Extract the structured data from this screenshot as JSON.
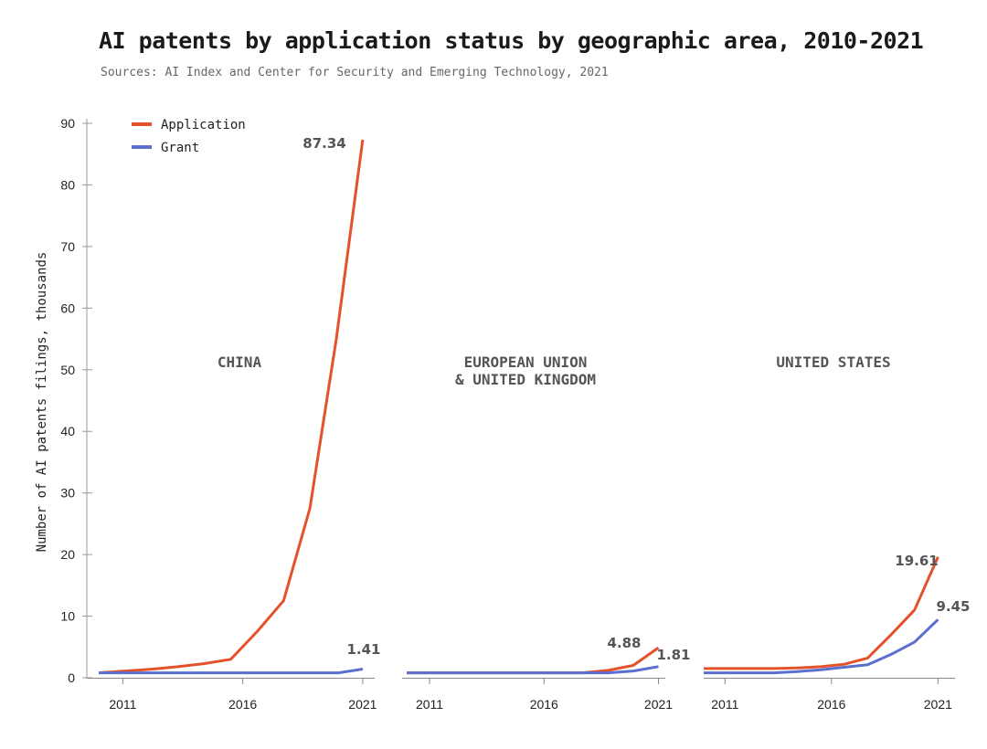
{
  "title": "AI patents by application status by geographic area, 2010-2021",
  "subtitle": "Sources: AI Index and Center for Security and Emerging Technology, 2021",
  "colors": {
    "application": "#e4522b",
    "grant": "#5b6fcf"
  },
  "chart_data": {
    "type": "line",
    "ylabel": "Number of AI patents filings, thousands",
    "ylim": [
      0,
      90
    ],
    "yticks": [
      0,
      10,
      20,
      30,
      40,
      50,
      60,
      70,
      80,
      90
    ],
    "xticks": [
      2011,
      2016,
      2021
    ],
    "legend": {
      "placement": "top-left",
      "entries": [
        "Application",
        "Grant"
      ]
    },
    "panels": [
      {
        "name": "CHINA",
        "x": [
          2010,
          2011,
          2012,
          2013,
          2014,
          2015,
          2016,
          2017,
          2018,
          2019,
          2020,
          2021
        ],
        "series": [
          {
            "name": "Application",
            "values": [
              0.8,
              1.1,
              1.4,
              1.8,
              2.3,
              3.0,
              7.5,
              12.5,
              27.5,
              55.0,
              87.34,
              null
            ]
          },
          {
            "name": "Grant",
            "values": [
              0.8,
              0.8,
              0.8,
              0.8,
              0.8,
              0.8,
              0.8,
              0.8,
              0.8,
              0.8,
              0.8,
              1.41
            ]
          }
        ],
        "data_labels": [
          {
            "series": "Application",
            "text": "87.34"
          },
          {
            "series": "Grant",
            "text": "1.41"
          }
        ]
      },
      {
        "name": "EUROPEAN UNION & UNITED KINGDOM",
        "name_lines": [
          "EUROPEAN UNION",
          "& UNITED KINGDOM"
        ],
        "x": [
          2010,
          2011,
          2012,
          2013,
          2014,
          2015,
          2016,
          2017,
          2018,
          2019,
          2020,
          2021
        ],
        "series": [
          {
            "name": "Application",
            "values": [
              0.8,
              0.8,
              0.8,
              0.8,
              0.8,
              0.8,
              0.8,
              0.8,
              1.2,
              2.0,
              4.88,
              null
            ]
          },
          {
            "name": "Grant",
            "values": [
              0.8,
              0.8,
              0.8,
              0.8,
              0.8,
              0.8,
              0.8,
              0.8,
              0.8,
              1.1,
              1.81,
              null
            ]
          }
        ],
        "data_labels": [
          {
            "series": "Application",
            "text": "4.88"
          },
          {
            "series": "Grant",
            "text": "1.81"
          }
        ]
      },
      {
        "name": "UNITED STATES",
        "x": [
          2010,
          2011,
          2012,
          2013,
          2014,
          2015,
          2016,
          2017,
          2018,
          2019,
          2020,
          2021
        ],
        "series": [
          {
            "name": "Application",
            "values": [
              1.5,
              1.5,
              1.5,
              1.5,
              1.6,
              1.8,
              2.2,
              3.2,
              7.0,
              11.0,
              19.61,
              null
            ]
          },
          {
            "name": "Grant",
            "values": [
              0.8,
              0.8,
              0.8,
              0.8,
              1.0,
              1.3,
              1.7,
              2.1,
              3.8,
              5.8,
              9.45,
              null
            ]
          }
        ],
        "data_labels": [
          {
            "series": "Application",
            "text": "19.61"
          },
          {
            "series": "Grant",
            "text": "9.45"
          }
        ]
      }
    ]
  }
}
